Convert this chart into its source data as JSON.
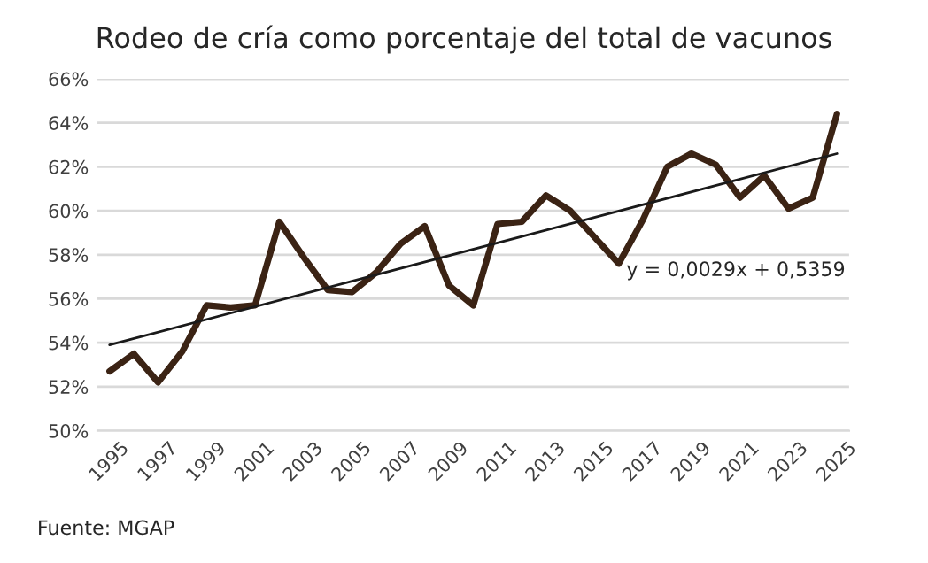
{
  "chart_data": {
    "type": "line",
    "title": "Rodeo de cría como porcentaje del total de vacunos",
    "x": [
      1995,
      1996,
      1997,
      1998,
      1999,
      2000,
      2001,
      2002,
      2003,
      2004,
      2005,
      2006,
      2007,
      2008,
      2009,
      2010,
      2011,
      2012,
      2013,
      2014,
      2015,
      2016,
      2017,
      2018,
      2019,
      2020,
      2021,
      2022,
      2023,
      2024,
      2025
    ],
    "series": [
      {
        "color": "#3b2314",
        "values": [
          52.7,
          53.5,
          52.2,
          53.6,
          55.7,
          55.6,
          55.7,
          59.5,
          57.9,
          56.4,
          56.3,
          57.2,
          58.5,
          59.3,
          56.6,
          55.7,
          59.4,
          59.5,
          60.7,
          60.0,
          58.8,
          57.6,
          59.6,
          62.0,
          62.6,
          62.1,
          60.6,
          61.6,
          60.1,
          60.6,
          64.4
        ]
      },
      {
        "type": "line",
        "color": "#1a1a1a",
        "x": [
          1995,
          2025
        ],
        "values": [
          53.9,
          62.6
        ]
      }
    ],
    "xlim": [
      1994.5,
      2025.5
    ],
    "xticks": [
      1995,
      1997,
      1999,
      2001,
      2003,
      2005,
      2007,
      2009,
      2011,
      2013,
      2015,
      2017,
      2019,
      2021,
      2023,
      2025
    ],
    "ylim": [
      50,
      66
    ],
    "yticks": [
      {
        "value": 50,
        "label": "50%"
      },
      {
        "value": 52,
        "label": "52%"
      },
      {
        "value": 54,
        "label": "54%"
      },
      {
        "value": 56,
        "label": "56%"
      },
      {
        "value": 58,
        "label": "58%"
      },
      {
        "value": 60,
        "label": "60%"
      },
      {
        "value": 62,
        "label": "62%"
      },
      {
        "value": 64,
        "label": "64%"
      },
      {
        "value": 66,
        "label": "66%"
      }
    ],
    "grid": "y",
    "legend": false,
    "annotations": [
      "y = 0,0029x + 0,5359",
      "Fuente: MGAP"
    ]
  }
}
